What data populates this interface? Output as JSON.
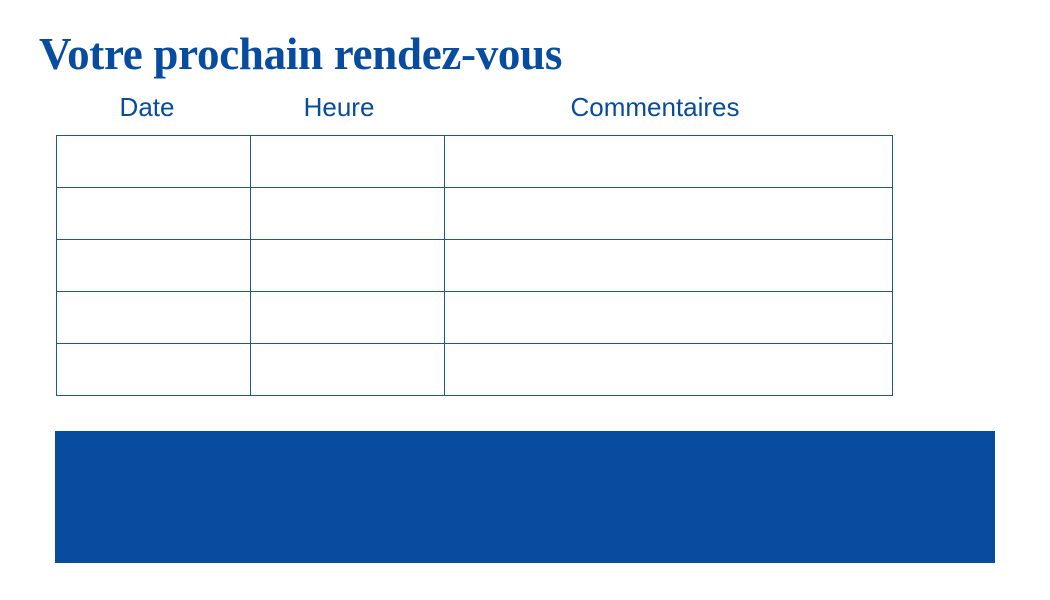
{
  "title": "Votre prochain rendez-vous",
  "table": {
    "columns": [
      "Date",
      "Heure",
      "Commentaires"
    ],
    "rows": [
      [
        "",
        "",
        ""
      ],
      [
        "",
        "",
        ""
      ],
      [
        "",
        "",
        ""
      ],
      [
        "",
        "",
        ""
      ],
      [
        "",
        "",
        ""
      ]
    ]
  },
  "colors": {
    "brand_blue": "#084ca0"
  }
}
